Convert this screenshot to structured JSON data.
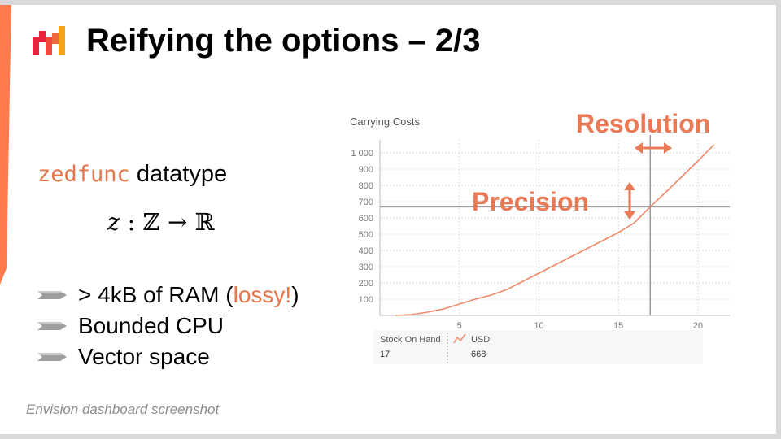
{
  "slide": {
    "title": "Reifying the options – 2/3",
    "datatype_code": "zedfunc",
    "datatype_word": "datatype",
    "formula": {
      "var": "z",
      "rest": " : ℤ → ℝ"
    },
    "bullets": [
      {
        "pre": "> 4kB of RAM (",
        "highlight": "lossy!",
        "post": ")"
      },
      {
        "pre": "Bounded CPU",
        "highlight": "",
        "post": ""
      },
      {
        "pre": "Vector space",
        "highlight": "",
        "post": ""
      }
    ],
    "caption": "Envision dashboard screenshot",
    "accent_color": "#ff7a4d",
    "highlight_color": "#e8754a",
    "icons": {
      "logo": "lokad-bars-logo",
      "bullet": "chevron-bullet-icon",
      "legend_series": "line-series-icon"
    }
  },
  "annotations": {
    "resolution": "Resolution",
    "precision": "Precision"
  },
  "legend": {
    "x_name": "Stock On Hand",
    "x_value": "17",
    "y_name": "USD",
    "y_value": "668"
  },
  "chart_data": {
    "type": "line",
    "title": "Carrying Costs",
    "xlabel": "",
    "ylabel": "",
    "xlim": [
      0,
      22
    ],
    "ylim": [
      0,
      1050
    ],
    "x_ticks": [
      5,
      10,
      15,
      20
    ],
    "y_ticks": [
      100,
      200,
      300,
      400,
      500,
      600,
      700,
      800,
      900,
      1000
    ],
    "y_tick_labels": [
      "100",
      "200",
      "300",
      "400",
      "500",
      "600",
      "700",
      "800",
      "900",
      "1 000"
    ],
    "grid": true,
    "series": [
      {
        "x": [
          1,
          2,
          3,
          4,
          5,
          6,
          7,
          8,
          9,
          10,
          11,
          12,
          13,
          14,
          15,
          16,
          17,
          18,
          19,
          20,
          21
        ],
        "values": [
          0,
          5,
          20,
          40,
          70,
          100,
          125,
          160,
          210,
          260,
          310,
          360,
          410,
          460,
          510,
          570,
          668,
          760,
          855,
          950,
          1050
        ]
      }
    ],
    "line_color": "#f08a6a",
    "crosshair": {
      "x": 17,
      "y": 668
    }
  }
}
